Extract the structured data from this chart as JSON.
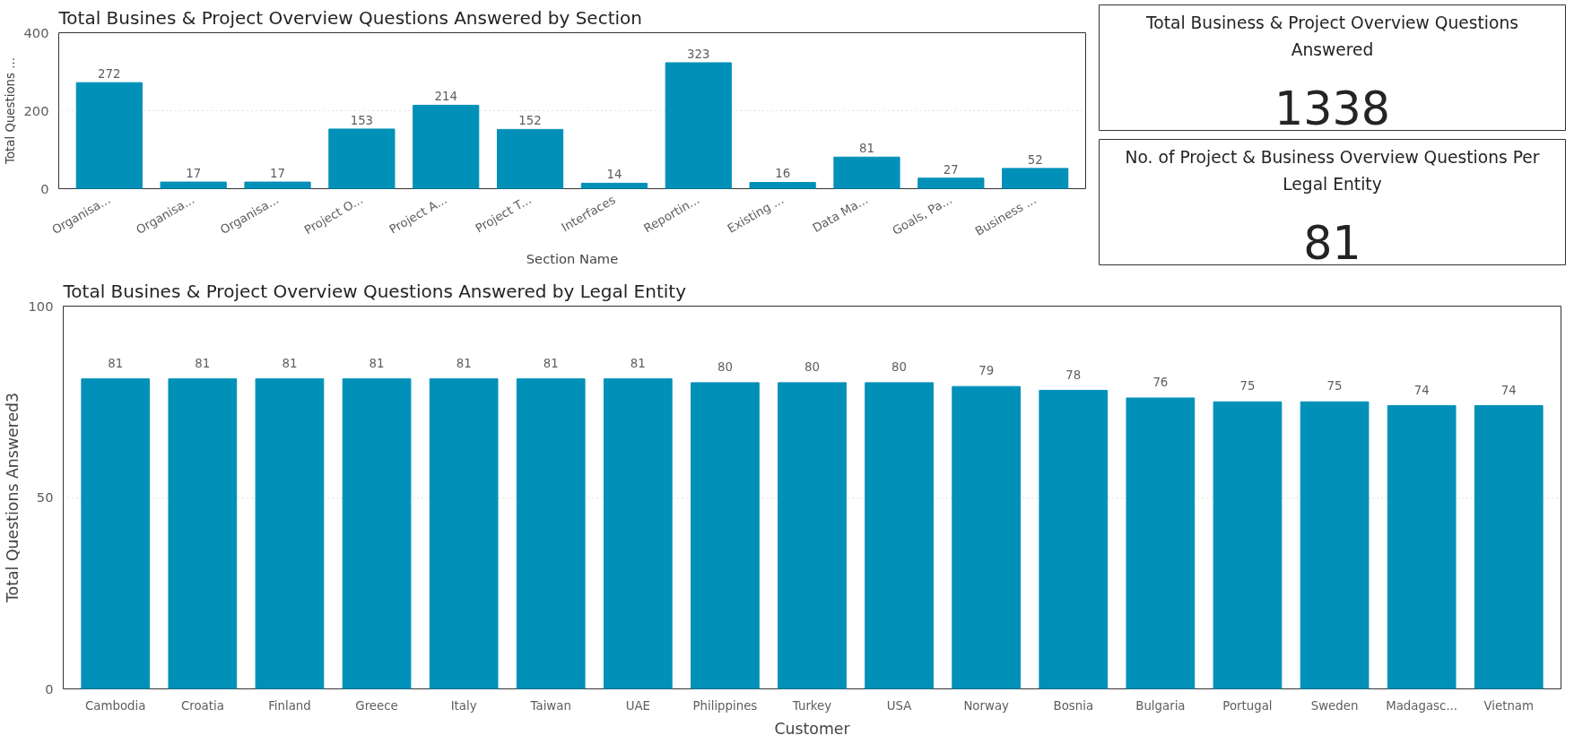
{
  "chart_data": [
    {
      "type": "bar",
      "title": "Total Busines & Project Overview Questions Answered by Section",
      "xlabel": "Section Name",
      "ylabel": "Total Questions ...",
      "categories": [
        "Organisa...",
        "Organisa...",
        "Organisa...",
        "Project O...",
        "Project A...",
        "Project T...",
        "Interfaces",
        "Reportin...",
        "Existing ...",
        "Data Ma...",
        "Goals, Pa...",
        "Business ..."
      ],
      "values": [
        272,
        17,
        17,
        153,
        214,
        152,
        14,
        323,
        16,
        81,
        27,
        52
      ],
      "color": "#0090b8",
      "ylim": [
        0,
        400
      ],
      "yticks": [
        0,
        200,
        400
      ],
      "grid": "y",
      "data_labels": true
    },
    {
      "type": "other",
      "title": "Total Business & Project Overview Questions Answered",
      "annotations": [
        "1338"
      ]
    },
    {
      "type": "other",
      "title": "No. of Project & Business Overview Questions Per Legal Entity",
      "annotations": [
        "81"
      ]
    },
    {
      "type": "bar",
      "title": "Total Busines & Project Overview Questions Answered by Legal Entity",
      "xlabel": "Customer",
      "ylabel": "Total Questions Answered3",
      "categories": [
        "Cambodia",
        "Croatia",
        "Finland",
        "Greece",
        "Italy",
        "Taiwan",
        "UAE",
        "Philippines",
        "Turkey",
        "USA",
        "Norway",
        "Bosnia",
        "Bulgaria",
        "Portugal",
        "Sweden",
        "Madagasc...",
        "Vietnam"
      ],
      "values": [
        81,
        81,
        81,
        81,
        81,
        81,
        81,
        80,
        80,
        80,
        79,
        78,
        76,
        75,
        75,
        74,
        74
      ],
      "color": "#0090b8",
      "ylim": [
        0,
        100
      ],
      "yticks": [
        0,
        50,
        100
      ],
      "grid": "y",
      "data_labels": true
    }
  ]
}
